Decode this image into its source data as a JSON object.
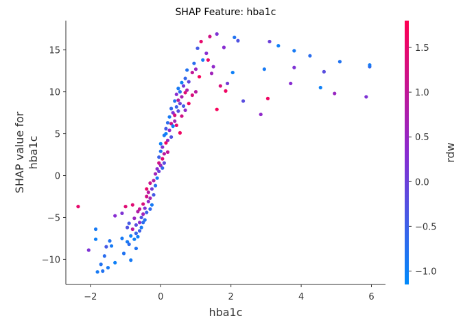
{
  "chart_data": {
    "type": "scatter",
    "title": "SHAP Feature: hba1c",
    "xlabel": "hba1c",
    "ylabel": "SHAP value for\nhba1c",
    "xlim": [
      -2.7,
      6.4
    ],
    "ylim": [
      -13,
      18.5
    ],
    "xticks": [
      -2,
      0,
      2,
      4,
      6
    ],
    "yticks": [
      -10,
      -5,
      0,
      5,
      10,
      15
    ],
    "xtick_labels": [
      "−2",
      "0",
      "2",
      "4",
      "6"
    ],
    "ytick_labels": [
      "−10",
      "−5",
      "0",
      "5",
      "10",
      "15"
    ],
    "grid": false,
    "colorbar": {
      "label": "rdw",
      "range": [
        -1.15,
        1.8
      ],
      "ticks": [
        -1.0,
        -0.5,
        0.0,
        0.5,
        1.0,
        1.5
      ],
      "tick_labels": [
        "−1.0",
        "−0.5",
        "0.0",
        "0.5",
        "1.0",
        "1.5"
      ],
      "colors": [
        "#008afb",
        "#8a2bd0",
        "#ff0052"
      ]
    },
    "points": [
      {
        "x": -2.35,
        "y": -3.7,
        "c": 1.5
      },
      {
        "x": -2.05,
        "y": -8.9,
        "c": 0.2
      },
      {
        "x": -1.85,
        "y": -6.4,
        "c": -0.9
      },
      {
        "x": -1.85,
        "y": -7.6,
        "c": -1.0
      },
      {
        "x": -1.8,
        "y": -11.5,
        "c": -0.9
      },
      {
        "x": -1.7,
        "y": -10.6,
        "c": -0.8
      },
      {
        "x": -1.6,
        "y": -9.6,
        "c": -0.7
      },
      {
        "x": -1.65,
        "y": -11.4,
        "c": -0.8
      },
      {
        "x": -1.55,
        "y": -8.5,
        "c": -0.4
      },
      {
        "x": -1.5,
        "y": -11.0,
        "c": -0.9
      },
      {
        "x": -1.45,
        "y": -7.8,
        "c": -0.8
      },
      {
        "x": -1.4,
        "y": -8.4,
        "c": -0.9
      },
      {
        "x": -1.3,
        "y": -10.4,
        "c": -1.0
      },
      {
        "x": -1.3,
        "y": -4.8,
        "c": 0.3
      },
      {
        "x": -1.1,
        "y": -4.5,
        "c": 0.2
      },
      {
        "x": -1.1,
        "y": -7.5,
        "c": -0.9
      },
      {
        "x": -1.05,
        "y": -9.3,
        "c": -0.8
      },
      {
        "x": -1.0,
        "y": -3.7,
        "c": 1.4
      },
      {
        "x": -0.95,
        "y": -6.2,
        "c": -0.3
      },
      {
        "x": -0.95,
        "y": -7.9,
        "c": -0.9
      },
      {
        "x": -0.9,
        "y": -8.2,
        "c": -0.7
      },
      {
        "x": -0.9,
        "y": -5.7,
        "c": -0.4
      },
      {
        "x": -0.85,
        "y": -7.2,
        "c": -1.0
      },
      {
        "x": -0.85,
        "y": -10.1,
        "c": -0.9
      },
      {
        "x": -0.8,
        "y": -6.4,
        "c": 0.9
      },
      {
        "x": -0.8,
        "y": -3.5,
        "c": 1.4
      },
      {
        "x": -0.75,
        "y": -7.6,
        "c": -1.0
      },
      {
        "x": -0.75,
        "y": -5.1,
        "c": 0.5
      },
      {
        "x": -0.7,
        "y": -6.9,
        "c": -0.6
      },
      {
        "x": -0.7,
        "y": -8.7,
        "c": -0.8
      },
      {
        "x": -0.7,
        "y": -5.9,
        "c": -0.2
      },
      {
        "x": -0.65,
        "y": -4.3,
        "c": 0.8
      },
      {
        "x": -0.65,
        "y": -7.3,
        "c": -1.0
      },
      {
        "x": -0.6,
        "y": -6.6,
        "c": -0.5
      },
      {
        "x": -0.6,
        "y": -5.6,
        "c": 0.3
      },
      {
        "x": -0.6,
        "y": -4.0,
        "c": 1.1
      },
      {
        "x": -0.55,
        "y": -5.0,
        "c": -0.3
      },
      {
        "x": -0.55,
        "y": -6.2,
        "c": -0.9
      },
      {
        "x": -0.5,
        "y": -4.6,
        "c": 0.6
      },
      {
        "x": -0.5,
        "y": -3.4,
        "c": 1.3
      },
      {
        "x": -0.5,
        "y": -5.6,
        "c": -0.7
      },
      {
        "x": -0.45,
        "y": -3.9,
        "c": 0.2
      },
      {
        "x": -0.45,
        "y": -5.3,
        "c": -0.8
      },
      {
        "x": -0.4,
        "y": -2.5,
        "c": 1.2
      },
      {
        "x": -0.4,
        "y": -4.4,
        "c": -0.5
      },
      {
        "x": -0.4,
        "y": -1.6,
        "c": 1.5
      },
      {
        "x": -0.35,
        "y": -3.1,
        "c": 0.4
      },
      {
        "x": -0.35,
        "y": -2.0,
        "c": 0.9
      },
      {
        "x": -0.3,
        "y": -4.0,
        "c": -0.6
      },
      {
        "x": -0.3,
        "y": -2.7,
        "c": 0.7
      },
      {
        "x": -0.3,
        "y": -0.9,
        "c": 1.1
      },
      {
        "x": -0.25,
        "y": -1.6,
        "c": 0.1
      },
      {
        "x": -0.25,
        "y": -3.5,
        "c": -0.9
      },
      {
        "x": -0.2,
        "y": -0.6,
        "c": 0.8
      },
      {
        "x": -0.2,
        "y": -2.3,
        "c": -0.4
      },
      {
        "x": -0.15,
        "y": 0.2,
        "c": 0.6
      },
      {
        "x": -0.15,
        "y": -1.2,
        "c": -0.7
      },
      {
        "x": -0.1,
        "y": 0.8,
        "c": 0.3
      },
      {
        "x": -0.1,
        "y": -0.3,
        "c": -0.9
      },
      {
        "x": -0.05,
        "y": 1.5,
        "c": 1.2
      },
      {
        "x": -0.05,
        "y": 2.2,
        "c": -0.5
      },
      {
        "x": -0.05,
        "y": 0.5,
        "c": 0.0
      },
      {
        "x": 0.0,
        "y": 2.9,
        "c": -0.8
      },
      {
        "x": 0.0,
        "y": 1.2,
        "c": 0.5
      },
      {
        "x": 0.0,
        "y": 3.8,
        "c": -1.0
      },
      {
        "x": 0.05,
        "y": 2.0,
        "c": 1.4
      },
      {
        "x": 0.05,
        "y": 3.4,
        "c": 0.2
      },
      {
        "x": 0.05,
        "y": 0.9,
        "c": -0.6
      },
      {
        "x": 0.1,
        "y": 4.8,
        "c": -0.9
      },
      {
        "x": 0.1,
        "y": 2.6,
        "c": 0.9
      },
      {
        "x": 0.1,
        "y": 1.5,
        "c": -0.2
      },
      {
        "x": 0.15,
        "y": 5.6,
        "c": -0.4
      },
      {
        "x": 0.15,
        "y": 3.9,
        "c": 1.6
      },
      {
        "x": 0.15,
        "y": 5.0,
        "c": -1.0
      },
      {
        "x": 0.2,
        "y": 4.2,
        "c": 0.5
      },
      {
        "x": 0.2,
        "y": 6.3,
        "c": -0.7
      },
      {
        "x": 0.2,
        "y": 2.8,
        "c": 1.0
      },
      {
        "x": 0.25,
        "y": 7.0,
        "c": -0.9
      },
      {
        "x": 0.25,
        "y": 5.4,
        "c": 0.4
      },
      {
        "x": 0.3,
        "y": 6.2,
        "c": 1.1
      },
      {
        "x": 0.3,
        "y": 4.6,
        "c": -0.3
      },
      {
        "x": 0.3,
        "y": 8.0,
        "c": -0.6
      },
      {
        "x": 0.35,
        "y": 7.5,
        "c": 0.2
      },
      {
        "x": 0.35,
        "y": 5.9,
        "c": -1.0
      },
      {
        "x": 0.4,
        "y": 8.9,
        "c": -0.8
      },
      {
        "x": 0.4,
        "y": 7.2,
        "c": 1.3
      },
      {
        "x": 0.4,
        "y": 6.5,
        "c": 0.6
      },
      {
        "x": 0.45,
        "y": 9.7,
        "c": 0.3
      },
      {
        "x": 0.45,
        "y": 8.2,
        "c": -0.5
      },
      {
        "x": 0.45,
        "y": 6.0,
        "c": 1.5
      },
      {
        "x": 0.5,
        "y": 10.4,
        "c": -0.9
      },
      {
        "x": 0.5,
        "y": 9.0,
        "c": 0.9
      },
      {
        "x": 0.5,
        "y": 7.7,
        "c": -0.2
      },
      {
        "x": 0.55,
        "y": 8.6,
        "c": 0.0
      },
      {
        "x": 0.55,
        "y": 10.0,
        "c": -0.7
      },
      {
        "x": 0.55,
        "y": 5.1,
        "c": 1.6
      },
      {
        "x": 0.6,
        "y": 11.1,
        "c": -1.0
      },
      {
        "x": 0.6,
        "y": 9.4,
        "c": 0.7
      },
      {
        "x": 0.6,
        "y": 7.1,
        "c": 1.2
      },
      {
        "x": 0.65,
        "y": 10.7,
        "c": 0.1
      },
      {
        "x": 0.65,
        "y": 8.3,
        "c": -0.4
      },
      {
        "x": 0.7,
        "y": 11.6,
        "c": -0.6
      },
      {
        "x": 0.7,
        "y": 9.9,
        "c": 1.4
      },
      {
        "x": 0.7,
        "y": 7.8,
        "c": 0.4
      },
      {
        "x": 0.75,
        "y": 12.6,
        "c": -0.8
      },
      {
        "x": 0.75,
        "y": 10.2,
        "c": 0.8
      },
      {
        "x": 0.8,
        "y": 11.2,
        "c": -0.1
      },
      {
        "x": 0.8,
        "y": 8.6,
        "c": 1.6
      },
      {
        "x": 0.9,
        "y": 12.3,
        "c": 1.0
      },
      {
        "x": 0.9,
        "y": 9.6,
        "c": 1.3
      },
      {
        "x": 0.95,
        "y": 13.4,
        "c": -0.7
      },
      {
        "x": 1.0,
        "y": 12.7,
        "c": 0.5
      },
      {
        "x": 1.0,
        "y": 10.0,
        "c": 0.9
      },
      {
        "x": 1.05,
        "y": 15.2,
        "c": -0.4
      },
      {
        "x": 1.1,
        "y": 11.8,
        "c": 1.7
      },
      {
        "x": 1.15,
        "y": 16.0,
        "c": 1.5
      },
      {
        "x": 1.2,
        "y": 13.8,
        "c": -0.9
      },
      {
        "x": 1.3,
        "y": 14.6,
        "c": 0.3
      },
      {
        "x": 1.35,
        "y": 13.8,
        "c": 1.6
      },
      {
        "x": 1.4,
        "y": 16.6,
        "c": 1.2
      },
      {
        "x": 1.45,
        "y": 12.2,
        "c": 0.6
      },
      {
        "x": 1.5,
        "y": 13.0,
        "c": 0.4
      },
      {
        "x": 1.6,
        "y": 16.9,
        "c": 0.2
      },
      {
        "x": 1.6,
        "y": 7.9,
        "c": 1.7
      },
      {
        "x": 1.7,
        "y": 10.7,
        "c": 1.3
      },
      {
        "x": 1.8,
        "y": 15.3,
        "c": 0.3
      },
      {
        "x": 1.85,
        "y": 10.1,
        "c": 1.6
      },
      {
        "x": 1.9,
        "y": 11.0,
        "c": 0.1
      },
      {
        "x": 2.05,
        "y": 12.3,
        "c": -1.0
      },
      {
        "x": 2.1,
        "y": 16.5,
        "c": -0.8
      },
      {
        "x": 2.2,
        "y": 16.1,
        "c": -0.3
      },
      {
        "x": 2.35,
        "y": 8.9,
        "c": -0.2
      },
      {
        "x": 2.85,
        "y": 7.3,
        "c": 0.4
      },
      {
        "x": 2.95,
        "y": 12.7,
        "c": -0.9
      },
      {
        "x": 3.05,
        "y": 9.2,
        "c": 1.6
      },
      {
        "x": 3.1,
        "y": 16.0,
        "c": 0.0
      },
      {
        "x": 3.35,
        "y": 15.5,
        "c": -1.0
      },
      {
        "x": 3.7,
        "y": 11.0,
        "c": 0.3
      },
      {
        "x": 3.8,
        "y": 12.9,
        "c": 0.2
      },
      {
        "x": 3.8,
        "y": 14.9,
        "c": -0.9
      },
      {
        "x": 4.25,
        "y": 14.3,
        "c": -0.7
      },
      {
        "x": 4.55,
        "y": 10.5,
        "c": -1.0
      },
      {
        "x": 4.65,
        "y": 12.4,
        "c": -0.2
      },
      {
        "x": 4.95,
        "y": 9.8,
        "c": 0.5
      },
      {
        "x": 5.1,
        "y": 13.6,
        "c": -0.8
      },
      {
        "x": 5.85,
        "y": 9.4,
        "c": 0.2
      },
      {
        "x": 5.95,
        "y": 13.0,
        "c": -0.6
      },
      {
        "x": 5.95,
        "y": 13.2,
        "c": -0.9
      }
    ]
  }
}
